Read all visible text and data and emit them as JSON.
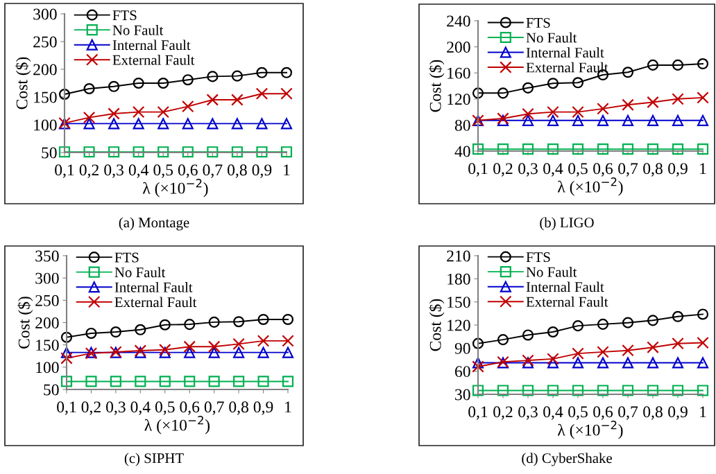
{
  "chart_data": [
    {
      "type": "line",
      "title": "(a) Montage",
      "xlabel": "λ (×10$^{−2}$)",
      "ylabel": "Cost ($)",
      "categories": [
        "0,1",
        "0,2",
        "0,3",
        "0,4",
        "0,5",
        "0,6",
        "0,7",
        "0,8",
        "0,9",
        "1"
      ],
      "ylim": [
        50,
        300
      ],
      "yticks": [
        50,
        100,
        150,
        200,
        250,
        300
      ],
      "legend": "top left",
      "grid": false,
      "series": [
        {
          "name": "FTS",
          "color": "#000000",
          "marker": "circle",
          "values": [
            155,
            165,
            169,
            175,
            175,
            181,
            187,
            188,
            194,
            194
          ]
        },
        {
          "name": "No Fault",
          "color": "#00b050",
          "marker": "square",
          "values": [
            51,
            51,
            51,
            51,
            51,
            51,
            51,
            51,
            51,
            51
          ]
        },
        {
          "name": "Internal Fault",
          "color": "#0000cc",
          "marker": "triangle",
          "values": [
            102,
            102,
            102,
            102,
            102,
            102,
            102,
            102,
            102,
            102
          ]
        },
        {
          "name": "External Fault",
          "color": "#c00000",
          "marker": "cross",
          "values": [
            103,
            113,
            120,
            123,
            123,
            133,
            145,
            145,
            156,
            156
          ]
        }
      ]
    },
    {
      "type": "line",
      "title": "(b) LIGO",
      "xlabel": "λ (×10$^{−2}$)",
      "ylabel": "Cost ($)",
      "categories": [
        "0,1",
        "0,2",
        "0,3",
        "0,4",
        "0,5",
        "0,6",
        "0,7",
        "0,8",
        "0,9",
        "1"
      ],
      "ylim": [
        40,
        240
      ],
      "yticks": [
        40,
        80,
        120,
        160,
        200,
        240
      ],
      "legend": "top left",
      "grid": false,
      "series": [
        {
          "name": "FTS",
          "color": "#000000",
          "marker": "circle",
          "values": [
            129,
            129,
            137,
            144,
            145,
            157,
            161,
            172,
            172,
            174
          ]
        },
        {
          "name": "No Fault",
          "color": "#00b050",
          "marker": "square",
          "values": [
            43,
            43,
            43,
            43,
            43,
            43,
            43,
            43,
            43,
            43
          ]
        },
        {
          "name": "Internal Fault",
          "color": "#0000cc",
          "marker": "triangle",
          "values": [
            87,
            87,
            87,
            87,
            87,
            87,
            87,
            87,
            87,
            87
          ]
        },
        {
          "name": "External Fault",
          "color": "#c00000",
          "marker": "cross",
          "values": [
            87,
            90,
            97,
            100,
            100,
            105,
            111,
            115,
            120,
            122
          ]
        }
      ]
    },
    {
      "type": "line",
      "title": "(c) SIPHT",
      "xlabel": "λ (×10$^{−2}$)",
      "ylabel": "Cost ($)",
      "categories": [
        "0,1",
        "0,2",
        "0,3",
        "0,4",
        "0,5",
        "0,6",
        "0,7",
        "0,8",
        "0,9",
        "1"
      ],
      "ylim": [
        50,
        350
      ],
      "yticks": [
        50,
        100,
        150,
        200,
        250,
        300,
        350
      ],
      "legend": "top left",
      "grid": false,
      "series": [
        {
          "name": "FTS",
          "color": "#000000",
          "marker": "circle",
          "values": [
            167,
            176,
            179,
            184,
            195,
            196,
            201,
            202,
            207,
            207
          ]
        },
        {
          "name": "No Fault",
          "color": "#00b050",
          "marker": "square",
          "values": [
            68,
            68,
            68,
            68,
            68,
            68,
            68,
            68,
            68,
            68
          ]
        },
        {
          "name": "Internal Fault",
          "color": "#0000cc",
          "marker": "triangle",
          "values": [
            133,
            133,
            133,
            133,
            133,
            133,
            133,
            133,
            133,
            133
          ]
        },
        {
          "name": "External Fault",
          "color": "#c00000",
          "marker": "cross",
          "values": [
            120,
            131,
            134,
            137,
            139,
            146,
            146,
            152,
            159,
            159
          ]
        }
      ]
    },
    {
      "type": "line",
      "title": "(d) CyberShake",
      "xlabel": "λ (×10$^{−2}$)",
      "ylabel": "Cost ($)",
      "categories": [
        "0,1",
        "0,2",
        "0,3",
        "0,4",
        "0,5",
        "0,6",
        "0,7",
        "0,8",
        "0,9",
        "1"
      ],
      "ylim": [
        30,
        210
      ],
      "yticks": [
        30,
        60,
        90,
        120,
        150,
        180,
        210
      ],
      "legend": "top left",
      "grid": false,
      "series": [
        {
          "name": "FTS",
          "color": "#000000",
          "marker": "circle",
          "values": [
            96,
            101,
            107,
            111,
            119,
            121,
            123,
            126,
            131,
            134
          ]
        },
        {
          "name": "No Fault",
          "color": "#00b050",
          "marker": "square",
          "values": [
            35,
            35,
            35,
            35,
            35,
            35,
            35,
            35,
            35,
            35
          ]
        },
        {
          "name": "Internal Fault",
          "color": "#0000cc",
          "marker": "triangle",
          "values": [
            71,
            71,
            71,
            71,
            71,
            71,
            71,
            71,
            71,
            71
          ]
        },
        {
          "name": "External Fault",
          "color": "#c00000",
          "marker": "cross",
          "values": [
            66,
            72,
            74,
            76,
            83,
            85,
            87,
            91,
            96,
            97
          ]
        }
      ]
    }
  ]
}
